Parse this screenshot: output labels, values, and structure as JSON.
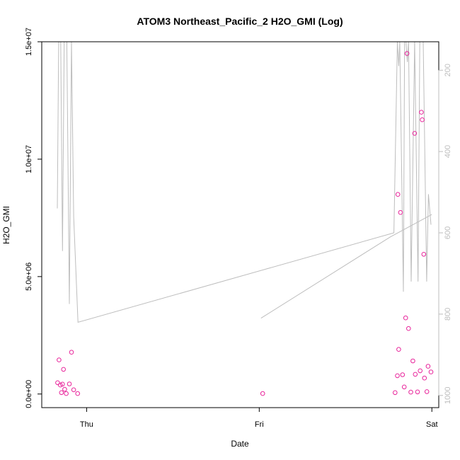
{
  "chart_data": {
    "type": "scatter",
    "title": "ATOM3 Northeast_Pacific_2 H2O_GMI (Log)",
    "xlabel": "Date",
    "ylabel": "H2O_GMI",
    "x_ticks": [
      "Thu",
      "Fri",
      "Sat"
    ],
    "xlim": [
      -0.26,
      2.04
    ],
    "ylim": [
      -580000.0,
      15000000.0
    ],
    "y_ticks": [
      0,
      5000000,
      10000000,
      15000000
    ],
    "y_tick_labels": [
      "0.0e+00",
      "5.0e+06",
      "1.0e+07",
      "1.5e+07"
    ],
    "y2_ticks": [
      200,
      400,
      600,
      800,
      1000
    ],
    "y2lim": [
      1030,
      130
    ],
    "point_color": "#e8259b",
    "line_color": "#bdbdbd",
    "grid": false,
    "points": [
      {
        "x": -0.168,
        "y": 480000
      },
      {
        "x": -0.16,
        "y": 1450000
      },
      {
        "x": -0.152,
        "y": 380000
      },
      {
        "x": -0.146,
        "y": 60000
      },
      {
        "x": -0.14,
        "y": 420000
      },
      {
        "x": -0.134,
        "y": 1050000
      },
      {
        "x": -0.127,
        "y": 200000
      },
      {
        "x": -0.118,
        "y": 20000
      },
      {
        "x": -0.1,
        "y": 430000
      },
      {
        "x": -0.088,
        "y": 1780000
      },
      {
        "x": -0.075,
        "y": 180000
      },
      {
        "x": -0.052,
        "y": 20000
      },
      {
        "x": 1.02,
        "y": 20000
      },
      {
        "x": 1.787,
        "y": 60000
      },
      {
        "x": 1.8,
        "y": 780000
      },
      {
        "x": 1.803,
        "y": 8500000
      },
      {
        "x": 1.808,
        "y": 1900000
      },
      {
        "x": 1.818,
        "y": 7730000
      },
      {
        "x": 1.83,
        "y": 820000
      },
      {
        "x": 1.84,
        "y": 300000
      },
      {
        "x": 1.848,
        "y": 3240000
      },
      {
        "x": 1.856,
        "y": 14500000
      },
      {
        "x": 1.865,
        "y": 2790000
      },
      {
        "x": 1.878,
        "y": 80000
      },
      {
        "x": 1.89,
        "y": 1410000
      },
      {
        "x": 1.9,
        "y": 11100000
      },
      {
        "x": 1.904,
        "y": 840000
      },
      {
        "x": 1.917,
        "y": 90000
      },
      {
        "x": 1.932,
        "y": 990000
      },
      {
        "x": 1.939,
        "y": 12000000
      },
      {
        "x": 1.944,
        "y": 11680000
      },
      {
        "x": 1.953,
        "y": 5950000
      },
      {
        "x": 1.957,
        "y": 680000
      },
      {
        "x": 1.971,
        "y": 100000
      },
      {
        "x": 1.978,
        "y": 1180000
      },
      {
        "x": 1.995,
        "y": 940000
      }
    ],
    "pressure_lines": [
      [
        {
          "x": -0.17,
          "p": 540
        },
        {
          "x": -0.162,
          "p": 120
        },
        {
          "x": -0.15,
          "p": 120
        },
        {
          "x": -0.14,
          "p": 645
        },
        {
          "x": -0.13,
          "p": 130
        },
        {
          "x": -0.115,
          "p": 130
        },
        {
          "x": -0.1,
          "p": 775
        },
        {
          "x": -0.088,
          "p": 130
        },
        {
          "x": -0.075,
          "p": 560
        },
        {
          "x": -0.05,
          "p": 820
        },
        {
          "x": 1.78,
          "p": 600
        },
        {
          "x": 1.8,
          "p": 130
        },
        {
          "x": 1.808,
          "p": 190
        },
        {
          "x": 1.814,
          "p": 130
        },
        {
          "x": 1.835,
          "p": 745
        },
        {
          "x": 1.842,
          "p": 130
        },
        {
          "x": 1.85,
          "p": 130
        },
        {
          "x": 1.858,
          "p": 180
        },
        {
          "x": 1.865,
          "p": 130
        },
        {
          "x": 1.88,
          "p": 720
        },
        {
          "x": 1.9,
          "p": 130
        },
        {
          "x": 1.92,
          "p": 720
        },
        {
          "x": 1.93,
          "p": 130
        },
        {
          "x": 1.95,
          "p": 130
        },
        {
          "x": 1.97,
          "p": 720
        },
        {
          "x": 1.98,
          "p": 505
        },
        {
          "x": 1.995,
          "p": 580
        }
      ],
      [
        {
          "x": 1.01,
          "p": 810
        },
        {
          "x": 1.76,
          "p": 610
        },
        {
          "x": 2.0,
          "p": 555
        }
      ]
    ]
  }
}
